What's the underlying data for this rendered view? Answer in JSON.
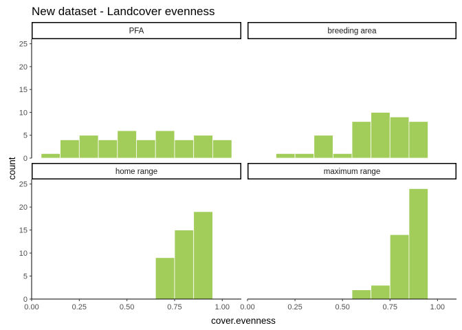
{
  "chart_data": {
    "type": "bar",
    "title": "New dataset - Landcover evenness",
    "xlabel": "cover.evenness",
    "ylabel": "count",
    "xlim": [
      0,
      1.1
    ],
    "ylim": [
      0,
      26
    ],
    "x_ticks": [
      0.0,
      0.25,
      0.5,
      0.75,
      1.0
    ],
    "x_tick_labels": [
      "0.00",
      "0.25",
      "0.50",
      "0.75",
      "1.00"
    ],
    "y_ticks": [
      0,
      5,
      10,
      15,
      20,
      25
    ],
    "y_tick_labels": [
      "0",
      "5",
      "10",
      "15",
      "20",
      "25"
    ],
    "bin_width": 0.1,
    "bar_color": "#a3cd5b",
    "bar_edge_color": "#ffffff",
    "strip_border_color": "#000000",
    "facets": [
      {
        "name": "PFA",
        "bins": [
          {
            "x": 0.1,
            "count": 1
          },
          {
            "x": 0.2,
            "count": 4
          },
          {
            "x": 0.3,
            "count": 5
          },
          {
            "x": 0.4,
            "count": 4
          },
          {
            "x": 0.5,
            "count": 6
          },
          {
            "x": 0.6,
            "count": 4
          },
          {
            "x": 0.7,
            "count": 6
          },
          {
            "x": 0.8,
            "count": 4
          },
          {
            "x": 0.9,
            "count": 5
          },
          {
            "x": 1.0,
            "count": 4
          }
        ]
      },
      {
        "name": "breeding area",
        "bins": [
          {
            "x": 0.2,
            "count": 1
          },
          {
            "x": 0.3,
            "count": 1
          },
          {
            "x": 0.4,
            "count": 5
          },
          {
            "x": 0.5,
            "count": 1
          },
          {
            "x": 0.6,
            "count": 8
          },
          {
            "x": 0.7,
            "count": 10
          },
          {
            "x": 0.8,
            "count": 9
          },
          {
            "x": 0.9,
            "count": 8
          }
        ]
      },
      {
        "name": "home range",
        "bins": [
          {
            "x": 0.7,
            "count": 9
          },
          {
            "x": 0.8,
            "count": 15
          },
          {
            "x": 0.9,
            "count": 19
          }
        ]
      },
      {
        "name": "maximum range",
        "bins": [
          {
            "x": 0.6,
            "count": 2
          },
          {
            "x": 0.7,
            "count": 3
          },
          {
            "x": 0.8,
            "count": 14
          },
          {
            "x": 0.9,
            "count": 24
          }
        ]
      }
    ]
  }
}
